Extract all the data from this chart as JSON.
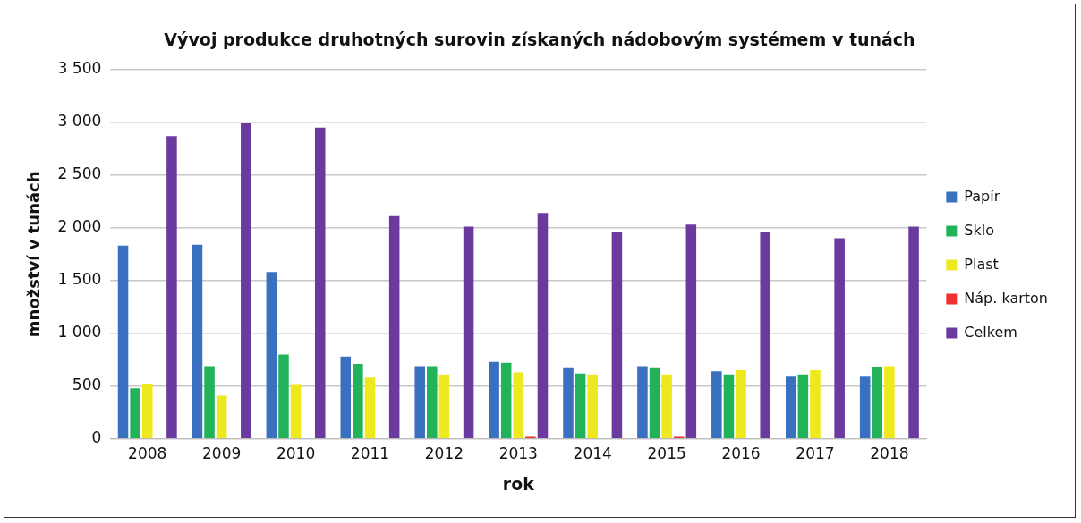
{
  "chart_data": {
    "type": "bar",
    "title": "Vývoj produkce druhotných surovin získaných nádobovým systémem v tunách",
    "xlabel": "rok",
    "ylabel": "množství v tunách",
    "categories": [
      "2008",
      "2009",
      "2010",
      "2011",
      "2012",
      "2013",
      "2014",
      "2015",
      "2016",
      "2017",
      "2018"
    ],
    "series": [
      {
        "name": "Papír",
        "color": "#3a70c0",
        "values": [
          1830,
          1840,
          1580,
          780,
          690,
          730,
          670,
          690,
          640,
          590,
          590
        ]
      },
      {
        "name": "Sklo",
        "color": "#22b35a",
        "values": [
          480,
          690,
          800,
          710,
          690,
          720,
          620,
          670,
          610,
          610,
          680
        ]
      },
      {
        "name": "Plast",
        "color": "#eee81e",
        "values": [
          520,
          410,
          510,
          580,
          610,
          630,
          610,
          610,
          650,
          650,
          690
        ]
      },
      {
        "name": "Náp. karton",
        "color": "#f03030",
        "values": [
          null,
          null,
          null,
          null,
          null,
          20,
          null,
          20,
          null,
          null,
          null
        ]
      },
      {
        "name": "Celkem",
        "color": "#6a3a9e",
        "values": [
          2870,
          2990,
          2950,
          2110,
          2010,
          2140,
          1960,
          2030,
          1960,
          1900,
          2010
        ]
      }
    ],
    "ylim": [
      0,
      3500
    ],
    "yticks": [
      {
        "value": 0,
        "label": "0"
      },
      {
        "value": 500,
        "label": "500"
      },
      {
        "value": 1000,
        "label": "1 000"
      },
      {
        "value": 1500,
        "label": "1 500"
      },
      {
        "value": 2000,
        "label": "2 000"
      },
      {
        "value": 2500,
        "label": "2 500"
      },
      {
        "value": 3000,
        "label": "3 000"
      },
      {
        "value": 3500,
        "label": "3 500"
      }
    ],
    "grid": "y",
    "legend": "right"
  }
}
